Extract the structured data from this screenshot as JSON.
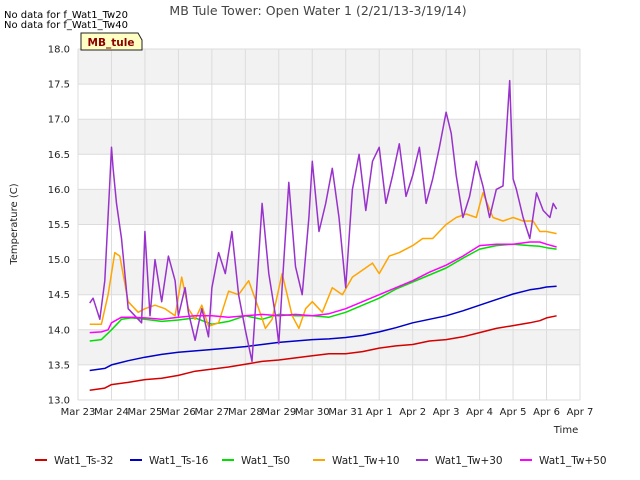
{
  "nodata": [
    "No data for f_Wat1_Tw20",
    "No data for f_Wat1_Tw40"
  ],
  "badge": "MB_tule",
  "chart_data": {
    "type": "line",
    "title": "MB Tule Tower: Open Water 1 (2/21/13-3/19/14)",
    "xlabel": "Time",
    "ylabel": "Temperature (C)",
    "xlim": [
      0,
      15
    ],
    "ylim": [
      13.0,
      18.0
    ],
    "x_ticks": [
      0,
      1,
      2,
      3,
      4,
      5,
      6,
      7,
      8,
      9,
      10,
      11,
      12,
      13,
      14,
      15
    ],
    "x_tick_labels": [
      "Mar 23",
      "Mar 24",
      "Mar 25",
      "Mar 26",
      "Mar 27",
      "Mar 28",
      "Mar 29",
      "Mar 30",
      "Mar 31",
      "Apr 1",
      "Apr 2",
      "Apr 3",
      "Apr 4",
      "Apr 5",
      "Apr 6",
      "Apr 7"
    ],
    "y_ticks": [
      13.0,
      13.5,
      14.0,
      14.5,
      15.0,
      15.5,
      16.0,
      16.5,
      17.0,
      17.5,
      18.0
    ],
    "y_tick_labels": [
      "13.0",
      "13.5",
      "14.0",
      "14.5",
      "15.0",
      "15.5",
      "16.0",
      "16.5",
      "17.0",
      "17.5",
      "18.0"
    ],
    "grid": true,
    "band_fill": "#f2f2f2",
    "legend_placement": "bottom",
    "series": [
      {
        "name": "Wat1_Ts-32",
        "color": "#d40000",
        "x": [
          0.35,
          0.8,
          1.0,
          1.5,
          2.0,
          2.5,
          3.0,
          3.5,
          4.0,
          4.5,
          5.0,
          5.5,
          6.0,
          6.5,
          7.0,
          7.5,
          8.0,
          8.5,
          9.0,
          9.5,
          10.0,
          10.5,
          11.0,
          11.5,
          12.0,
          12.5,
          13.0,
          13.5,
          13.8,
          14.0,
          14.3
        ],
        "y": [
          13.14,
          13.17,
          13.22,
          13.25,
          13.29,
          13.31,
          13.35,
          13.41,
          13.44,
          13.47,
          13.51,
          13.55,
          13.57,
          13.6,
          13.63,
          13.66,
          13.66,
          13.69,
          13.74,
          13.77,
          13.79,
          13.84,
          13.86,
          13.9,
          13.96,
          14.02,
          14.06,
          14.1,
          14.13,
          14.17,
          14.2
        ]
      },
      {
        "name": "Wat1_Ts-16",
        "color": "#0000c8",
        "x": [
          0.35,
          0.8,
          1.0,
          1.5,
          2.0,
          2.5,
          3.0,
          3.5,
          4.0,
          4.5,
          5.0,
          5.5,
          6.0,
          6.5,
          7.0,
          7.5,
          8.0,
          8.5,
          9.0,
          9.5,
          10.0,
          10.5,
          11.0,
          11.5,
          12.0,
          12.5,
          13.0,
          13.5,
          13.8,
          14.0,
          14.3
        ],
        "y": [
          13.42,
          13.45,
          13.5,
          13.56,
          13.61,
          13.65,
          13.68,
          13.7,
          13.72,
          13.74,
          13.76,
          13.79,
          13.82,
          13.84,
          13.86,
          13.87,
          13.89,
          13.92,
          13.97,
          14.03,
          14.1,
          14.15,
          14.2,
          14.27,
          14.35,
          14.43,
          14.51,
          14.57,
          14.59,
          14.61,
          14.62
        ]
      },
      {
        "name": "Wat1_Ts0",
        "color": "#00e000",
        "x": [
          0.35,
          0.7,
          1.0,
          1.3,
          1.6,
          2.0,
          2.5,
          3.0,
          3.5,
          4.0,
          4.5,
          5.0,
          5.5,
          6.0,
          6.5,
          7.0,
          7.5,
          8.0,
          8.5,
          9.0,
          9.5,
          10.0,
          10.5,
          11.0,
          11.5,
          12.0,
          12.5,
          13.0,
          13.5,
          13.8,
          14.0,
          14.3
        ],
        "y": [
          13.84,
          13.86,
          14.0,
          14.15,
          14.17,
          14.15,
          14.12,
          14.14,
          14.17,
          14.08,
          14.12,
          14.2,
          14.15,
          14.22,
          14.2,
          14.2,
          14.18,
          14.25,
          14.35,
          14.45,
          14.58,
          14.68,
          14.78,
          14.88,
          15.02,
          15.15,
          15.2,
          15.22,
          15.2,
          15.19,
          15.17,
          15.15
        ]
      },
      {
        "name": "Wat1_Tw+10",
        "color": "#ffa500",
        "x": [
          0.35,
          0.7,
          0.9,
          1.1,
          1.25,
          1.5,
          1.8,
          2.0,
          2.3,
          2.6,
          2.9,
          3.1,
          3.3,
          3.5,
          3.7,
          3.9,
          4.2,
          4.5,
          4.8,
          5.1,
          5.4,
          5.6,
          5.8,
          6.1,
          6.4,
          6.6,
          6.8,
          7.0,
          7.3,
          7.6,
          7.9,
          8.2,
          8.5,
          8.8,
          9.0,
          9.3,
          9.6,
          10.0,
          10.3,
          10.6,
          11.0,
          11.3,
          11.6,
          11.9,
          12.1,
          12.4,
          12.7,
          13.0,
          13.3,
          13.6,
          13.8,
          14.0,
          14.3
        ],
        "y": [
          14.08,
          14.08,
          14.5,
          15.1,
          15.05,
          14.4,
          14.25,
          14.3,
          14.35,
          14.3,
          14.2,
          14.75,
          14.3,
          14.15,
          14.35,
          14.05,
          14.1,
          14.55,
          14.5,
          14.7,
          14.3,
          14.02,
          14.15,
          14.8,
          14.2,
          14.02,
          14.3,
          14.4,
          14.25,
          14.6,
          14.5,
          14.75,
          14.85,
          14.95,
          14.8,
          15.05,
          15.1,
          15.2,
          15.3,
          15.3,
          15.5,
          15.6,
          15.65,
          15.6,
          15.95,
          15.6,
          15.55,
          15.6,
          15.55,
          15.55,
          15.4,
          15.4,
          15.37
        ]
      },
      {
        "name": "Wat1_Tw+30",
        "color": "#9932cc",
        "x": [
          0.35,
          0.45,
          0.65,
          0.8,
          0.95,
          1.0,
          1.05,
          1.15,
          1.3,
          1.5,
          1.7,
          1.9,
          2.0,
          2.15,
          2.3,
          2.5,
          2.7,
          2.9,
          3.0,
          3.2,
          3.3,
          3.5,
          3.7,
          3.9,
          4.0,
          4.2,
          4.4,
          4.6,
          4.8,
          5.0,
          5.2,
          5.3,
          5.5,
          5.7,
          5.9,
          6.0,
          6.1,
          6.3,
          6.5,
          6.7,
          6.9,
          7.0,
          7.2,
          7.4,
          7.6,
          7.8,
          8.0,
          8.2,
          8.4,
          8.6,
          8.8,
          9.0,
          9.2,
          9.4,
          9.6,
          9.8,
          10.0,
          10.2,
          10.4,
          10.6,
          10.8,
          11.0,
          11.15,
          11.3,
          11.5,
          11.7,
          11.9,
          12.1,
          12.3,
          12.5,
          12.7,
          12.9,
          13.0,
          13.1,
          13.3,
          13.5,
          13.7,
          13.9,
          14.1,
          14.2,
          14.3
        ],
        "y": [
          14.38,
          14.45,
          14.15,
          14.7,
          16.1,
          16.6,
          16.3,
          15.8,
          15.3,
          14.3,
          14.2,
          14.1,
          15.4,
          14.2,
          15.0,
          14.4,
          15.05,
          14.7,
          14.2,
          14.6,
          14.25,
          13.85,
          14.3,
          13.9,
          14.6,
          15.1,
          14.8,
          15.4,
          14.5,
          14.0,
          13.55,
          14.3,
          15.8,
          14.8,
          14.2,
          13.8,
          14.6,
          16.1,
          14.9,
          14.5,
          15.6,
          16.4,
          15.4,
          15.8,
          16.3,
          15.6,
          14.6,
          16.0,
          16.5,
          15.7,
          16.4,
          16.6,
          15.8,
          16.2,
          16.65,
          15.9,
          16.2,
          16.6,
          15.8,
          16.15,
          16.6,
          17.1,
          16.8,
          16.2,
          15.6,
          15.9,
          16.4,
          16.05,
          15.6,
          16.0,
          16.05,
          17.55,
          16.15,
          16.0,
          15.6,
          15.3,
          15.95,
          15.7,
          15.6,
          15.8,
          15.72
        ]
      },
      {
        "name": "Wat1_Tw+50",
        "color": "#ff00ff",
        "x": [
          0.35,
          0.7,
          0.9,
          1.0,
          1.3,
          1.6,
          2.0,
          2.5,
          3.0,
          3.5,
          4.0,
          4.5,
          5.0,
          5.5,
          6.0,
          6.5,
          7.0,
          7.5,
          8.0,
          8.5,
          9.0,
          9.5,
          10.0,
          10.5,
          11.0,
          11.5,
          12.0,
          12.5,
          13.0,
          13.5,
          13.8,
          14.0,
          14.3
        ],
        "y": [
          13.96,
          13.97,
          14.0,
          14.1,
          14.18,
          14.18,
          14.17,
          14.15,
          14.18,
          14.2,
          14.2,
          14.18,
          14.2,
          14.22,
          14.2,
          14.22,
          14.2,
          14.23,
          14.3,
          14.4,
          14.5,
          14.6,
          14.7,
          14.82,
          14.92,
          15.05,
          15.2,
          15.22,
          15.22,
          15.25,
          15.25,
          15.22,
          15.18
        ]
      }
    ]
  }
}
